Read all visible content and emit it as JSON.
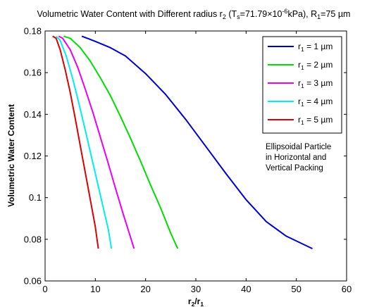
{
  "chart_data": {
    "type": "line",
    "title": "Volumetric Water Content with Different radius r2 (Ts=71.79×10-6kPa), R1=75 µm",
    "title_parts": {
      "t1": "Volumetric Water Content with Different radius r",
      "s1": "2",
      "t2": " (T",
      "s2": "s",
      "t3": "=71.79×10",
      "s3": "-6",
      "t4": "kPa), R",
      "s4": "1",
      "t5": "=75 µm"
    },
    "xlabel": "r2/r1",
    "xlabel_parts": {
      "a": "r",
      "a_sub": "2",
      "b": "/r",
      "b_sub": "1"
    },
    "ylabel": "Volumetric Water Content",
    "xlim": [
      0,
      60
    ],
    "ylim": [
      0.06,
      0.18
    ],
    "xticks": [
      0,
      10,
      20,
      30,
      40,
      50,
      60
    ],
    "yticks": [
      0.06,
      0.08,
      0.1,
      0.12,
      0.14,
      0.16,
      0.18
    ],
    "ytick_labels": [
      "0.06",
      "0.08",
      "0.1",
      "0.12",
      "0.14",
      "0.16",
      "0.18"
    ],
    "legend_position": "top-right",
    "annotation": [
      "Ellipsoidal Particle",
      "in Horizontal and",
      "Vertical Packing"
    ],
    "series": [
      {
        "name": "r1 = 1 µm",
        "label_main": "r",
        "label_sub": "1",
        "label_rest": " = 1 µm",
        "color": "#0000cc",
        "x": [
          7.3,
          10,
          13,
          16,
          20,
          24,
          28,
          32,
          36,
          40,
          44,
          48,
          53.2
        ],
        "y": [
          0.1775,
          0.175,
          0.172,
          0.168,
          0.1595,
          0.1495,
          0.1375,
          0.1245,
          0.1115,
          0.099,
          0.0885,
          0.0815,
          0.0755
        ]
      },
      {
        "name": "r1 = 2 µm",
        "label_main": "r",
        "label_sub": "1",
        "label_rest": " = 2 µm",
        "color": "#00dd00",
        "x": [
          3.7,
          5,
          7,
          9,
          11,
          13,
          15,
          17,
          19,
          21,
          23,
          25,
          26.4
        ],
        "y": [
          0.1775,
          0.1765,
          0.172,
          0.1655,
          0.1575,
          0.149,
          0.139,
          0.1285,
          0.1175,
          0.106,
          0.095,
          0.083,
          0.0755
        ]
      },
      {
        "name": "r1 = 3 µm",
        "label_main": "r",
        "label_sub": "1",
        "label_rest": " = 3 µm",
        "color": "#ee00ee",
        "x": [
          2.7,
          3.5,
          5,
          6.5,
          8,
          9.5,
          11,
          12.5,
          14,
          15.5,
          17,
          17.7
        ],
        "y": [
          0.1775,
          0.1765,
          0.171,
          0.1625,
          0.152,
          0.141,
          0.129,
          0.117,
          0.1045,
          0.0925,
          0.081,
          0.0755
        ]
      },
      {
        "name": "r1 = 4 µm",
        "label_main": "r",
        "label_sub": "1",
        "label_rest": " = 4 µm",
        "color": "#00eeee",
        "x": [
          2.2,
          3,
          4.2,
          5.4,
          6.6,
          7.8,
          9,
          10.2,
          11.4,
          12.6,
          13.2
        ],
        "y": [
          0.1775,
          0.1755,
          0.168,
          0.158,
          0.1465,
          0.1345,
          0.122,
          0.1095,
          0.097,
          0.0845,
          0.0755
        ]
      },
      {
        "name": "r1 = 5 µm",
        "label_main": "r",
        "label_sub": "1",
        "label_rest": " = 5 µm",
        "color": "#dd0000",
        "x": [
          1.5,
          2.2,
          3,
          4,
          5,
          6,
          7,
          8,
          9,
          10,
          10.6
        ],
        "y": [
          0.1775,
          0.1765,
          0.171,
          0.1615,
          0.1505,
          0.138,
          0.125,
          0.112,
          0.099,
          0.086,
          0.0755
        ]
      }
    ]
  }
}
